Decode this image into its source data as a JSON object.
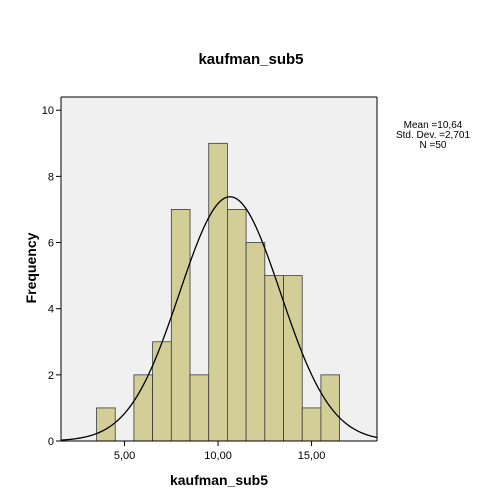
{
  "chart_data": {
    "type": "bar",
    "title": "kaufman_sub5",
    "xlabel": "kaufman_sub5",
    "ylabel": "Frequency",
    "bin_width": 1,
    "bins": [
      {
        "center": 4,
        "count": 1
      },
      {
        "center": 5,
        "count": 0
      },
      {
        "center": 6,
        "count": 2
      },
      {
        "center": 7,
        "count": 3
      },
      {
        "center": 8,
        "count": 7
      },
      {
        "center": 9,
        "count": 2
      },
      {
        "center": 10,
        "count": 9
      },
      {
        "center": 11,
        "count": 7
      },
      {
        "center": 12,
        "count": 6
      },
      {
        "center": 13,
        "count": 5
      },
      {
        "center": 14,
        "count": 5
      },
      {
        "center": 15,
        "count": 1
      },
      {
        "center": 16,
        "count": 2
      }
    ],
    "xlim": [
      1.6,
      18.5
    ],
    "ylim": [
      0,
      10.4
    ],
    "x_ticks": [
      5,
      10,
      15
    ],
    "x_tick_labels": [
      "5,00",
      "10,00",
      "15,00"
    ],
    "y_ticks": [
      0,
      2,
      4,
      6,
      8,
      10
    ],
    "y_tick_labels": [
      "0",
      "2",
      "4",
      "6",
      "8",
      "10"
    ],
    "normal_curve": {
      "mean": 10.64,
      "sd": 2.701,
      "n": 50
    },
    "stats_labels": [
      "Mean =10,64",
      "Std. Dev. =2,701",
      "N =50"
    ],
    "grid": false,
    "colors": {
      "bar_fill": "#D3CE97",
      "bar_stroke": "#3a3a3a",
      "plot_bg": "#F0F0F0",
      "curve": "#000000"
    }
  }
}
